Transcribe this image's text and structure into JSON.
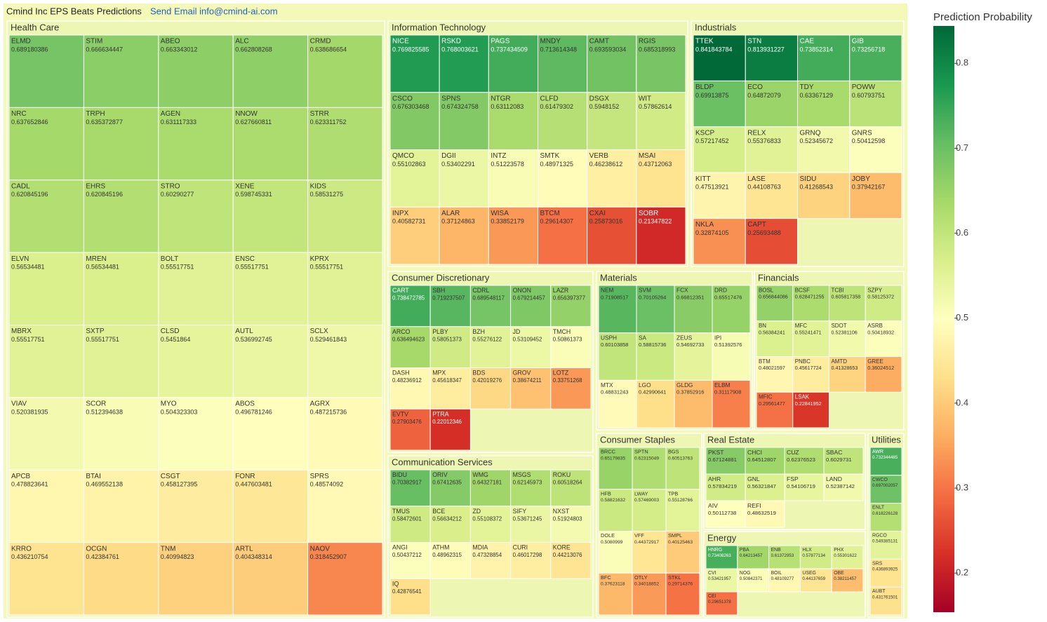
{
  "chart_data": {
    "type": "treemap",
    "title": "Cmind Inc EPS Beats Predictions",
    "link_text": "Send Email info@cmind-ai.com",
    "colorbar_title": "Prediction Probability",
    "clim": [
      0.154,
      0.844
    ],
    "cticks": [
      0.2,
      0.3,
      0.4,
      0.5,
      0.6,
      0.7,
      0.8
    ],
    "colorscale": [
      "#a50026",
      "#d73027",
      "#f46d43",
      "#fdae61",
      "#fee08b",
      "#ffffbf",
      "#d9ef8b",
      "#a6d96a",
      "#66bd63",
      "#1a9850",
      "#006837"
    ],
    "sectors": [
      {
        "name": "Health Care",
        "tiles": [
          {
            "label": "ELMD",
            "value": 0.689180386
          },
          {
            "label": "STIM",
            "value": 0.666634447
          },
          {
            "label": "ABEO",
            "value": 0.663343012
          },
          {
            "label": "ALC",
            "value": 0.662808268
          },
          {
            "label": "CRMD",
            "value": 0.638686654
          },
          {
            "label": "NRC",
            "value": 0.637652846
          },
          {
            "label": "TRPH",
            "value": 0.635372877
          },
          {
            "label": "AGEN",
            "value": 0.631117333
          },
          {
            "label": "NNOW",
            "value": 0.627660811
          },
          {
            "label": "STRR",
            "value": 0.623311752
          },
          {
            "label": "CADL",
            "value": 0.620845196
          },
          {
            "label": "EHRS",
            "value": 0.620845196
          },
          {
            "label": "STRO",
            "value": 0.60290277
          },
          {
            "label": "XENE",
            "value": 0.598745331
          },
          {
            "label": "KIDS",
            "value": 0.58531275
          },
          {
            "label": "ELVN",
            "value": 0.56534481
          },
          {
            "label": "MREN",
            "value": 0.56534481
          },
          {
            "label": "BOLT",
            "value": 0.55517751
          },
          {
            "label": "ENSC",
            "value": 0.55517751
          },
          {
            "label": "KPRX",
            "value": 0.55517751
          },
          {
            "label": "MBRX",
            "value": 0.55517751
          },
          {
            "label": "SXTP",
            "value": 0.55517751
          },
          {
            "label": "CLSD",
            "value": 0.5451864
          },
          {
            "label": "AUTL",
            "value": 0.536992745
          },
          {
            "label": "SCLX",
            "value": 0.529461843
          },
          {
            "label": "VIAV",
            "value": 0.520381935
          },
          {
            "label": "SCOR",
            "value": 0.512394638
          },
          {
            "label": "MYO",
            "value": 0.504323303
          },
          {
            "label": "ABOS",
            "value": 0.496781246
          },
          {
            "label": "AGRX",
            "value": 0.487215736
          },
          {
            "label": "APCB",
            "value": 0.478823641
          },
          {
            "label": "BTAI",
            "value": 0.469552138
          },
          {
            "label": "CSGT",
            "value": 0.458127395
          },
          {
            "label": "FONR",
            "value": 0.447603481
          },
          {
            "label": "SPRS",
            "value": 0.48574092
          },
          {
            "label": "KRRO",
            "value": 0.436210754
          },
          {
            "label": "OCGN",
            "value": 0.42384761
          },
          {
            "label": "TNM",
            "value": 0.40994823
          },
          {
            "label": "ARTL",
            "value": 0.404348314
          },
          {
            "label": "NAOV",
            "value": 0.318452907
          }
        ]
      },
      {
        "name": "Information Technology",
        "tiles": [
          {
            "label": "NICE",
            "value": 0.769825585
          },
          {
            "label": "RSKD",
            "value": 0.768003621
          },
          {
            "label": "PAGS",
            "value": 0.737434509
          },
          {
            "label": "MNDY",
            "value": 0.713614348
          },
          {
            "label": "CAMT",
            "value": 0.693593034
          },
          {
            "label": "RGIS",
            "value": 0.685318993
          },
          {
            "label": "CSCO",
            "value": 0.676303468
          },
          {
            "label": "SPNS",
            "value": 0.674324758
          },
          {
            "label": "NTGR",
            "value": 0.63112083
          },
          {
            "label": "CLFD",
            "value": 0.61479302
          },
          {
            "label": "DSGX",
            "value": 0.5948152
          },
          {
            "label": "WIT",
            "value": 0.57862614
          },
          {
            "label": "QMCO",
            "value": 0.55102863
          },
          {
            "label": "DGII",
            "value": 0.53402291
          },
          {
            "label": "INTZ",
            "value": 0.51223578
          },
          {
            "label": "SMTK",
            "value": 0.48971325
          },
          {
            "label": "VERB",
            "value": 0.46238612
          },
          {
            "label": "MSAI",
            "value": 0.43712063
          },
          {
            "label": "INPX",
            "value": 0.40582731
          },
          {
            "label": "ALAR",
            "value": 0.37124863
          },
          {
            "label": "WISA",
            "value": 0.33852179
          },
          {
            "label": "BTCM",
            "value": 0.29614307
          },
          {
            "label": "CXAI",
            "value": 0.25873016
          },
          {
            "label": "SOBR",
            "value": 0.21347822
          }
        ]
      },
      {
        "name": "Industrials",
        "tiles": [
          {
            "label": "TTEK",
            "value": 0.841843784
          },
          {
            "label": "STN",
            "value": 0.813931227
          },
          {
            "label": "CAE",
            "value": 0.73852314
          },
          {
            "label": "GIB",
            "value": 0.73256718
          },
          {
            "label": "BLDP",
            "value": 0.69913875
          },
          {
            "label": "ECO",
            "value": 0.64872079
          },
          {
            "label": "TDY",
            "value": 0.63367129
          },
          {
            "label": "POWW",
            "value": 0.60793751
          },
          {
            "label": "KSCP",
            "value": 0.57217452
          },
          {
            "label": "RELX",
            "value": 0.55376833
          },
          {
            "label": "GRNQ",
            "value": 0.52345672
          },
          {
            "label": "GNRS",
            "value": 0.50412598
          },
          {
            "label": "KITT",
            "value": 0.47513921
          },
          {
            "label": "LASE",
            "value": 0.44108763
          },
          {
            "label": "SIDU",
            "value": 0.41268543
          },
          {
            "label": "JOBY",
            "value": 0.37942167
          },
          {
            "label": "NKLA",
            "value": 0.32874105
          },
          {
            "label": "CAPT",
            "value": 0.25693488
          }
        ]
      },
      {
        "name": "Consumer Discretionary",
        "tiles": [
          {
            "label": "CART",
            "value": 0.738472785
          },
          {
            "label": "SBH",
            "value": 0.719237507
          },
          {
            "label": "CDRL",
            "value": 0.689548117
          },
          {
            "label": "ONON",
            "value": 0.679214457
          },
          {
            "label": "LAZR",
            "value": 0.656397377
          },
          {
            "label": "ARCO",
            "value": 0.636494623
          },
          {
            "label": "PLBY",
            "value": 0.58051373
          },
          {
            "label": "BZH",
            "value": 0.55276122
          },
          {
            "label": "JD",
            "value": 0.53109452
          },
          {
            "label": "TMCH",
            "value": 0.50861373
          },
          {
            "label": "DASH",
            "value": 0.48236912
          },
          {
            "label": "MPX",
            "value": 0.45618347
          },
          {
            "label": "BDS",
            "value": 0.42019276
          },
          {
            "label": "GROV",
            "value": 0.38674211
          },
          {
            "label": "LOTZ",
            "value": 0.33751268
          },
          {
            "label": "EVTV",
            "value": 0.27903476
          },
          {
            "label": "PTRA",
            "value": 0.22012346
          }
        ]
      },
      {
        "name": "Materials",
        "tiles": [
          {
            "label": "NEM",
            "value": 0.71908517
          },
          {
            "label": "SVM",
            "value": 0.70105264
          },
          {
            "label": "FCX",
            "value": 0.66812351
          },
          {
            "label": "DRD",
            "value": 0.65517476
          },
          {
            "label": "USPH",
            "value": 0.60103858
          },
          {
            "label": "SA",
            "value": 0.58815736
          },
          {
            "label": "ZEUS",
            "value": 0.54692733
          },
          {
            "label": "IPI",
            "value": 0.51392576
          },
          {
            "label": "MTX",
            "value": 0.48831243
          },
          {
            "label": "LGO",
            "value": 0.42990641
          },
          {
            "label": "GLDG",
            "value": 0.37852916
          },
          {
            "label": "ELBM",
            "value": 0.31117908
          }
        ]
      },
      {
        "name": "Financials",
        "tiles": [
          {
            "label": "BOSL",
            "value": 0.656844086
          },
          {
            "label": "BCSF",
            "value": 0.628471255
          },
          {
            "label": "TCBI",
            "value": 0.605817358
          },
          {
            "label": "SZPY",
            "value": 0.58125372
          },
          {
            "label": "BN",
            "value": 0.56384241
          },
          {
            "label": "MFC",
            "value": 0.55241471
          },
          {
            "label": "SDOT",
            "value": 0.52381106
          },
          {
            "label": "ASRB",
            "value": 0.50418932
          },
          {
            "label": "BTM",
            "value": 0.48021597
          },
          {
            "label": "PNBC",
            "value": 0.45617724
          },
          {
            "label": "AMTD",
            "value": 0.41328653
          },
          {
            "label": "GREE",
            "value": 0.36024512
          },
          {
            "label": "MFIC",
            "value": 0.29561477
          },
          {
            "label": "LSAK",
            "value": 0.22841952
          }
        ]
      },
      {
        "name": "Communication Services",
        "tiles": [
          {
            "label": "BIDU",
            "value": 0.70382917
          },
          {
            "label": "ORIV",
            "value": 0.67412635
          },
          {
            "label": "WMG",
            "value": 0.64327181
          },
          {
            "label": "MSGS",
            "value": 0.62145973
          },
          {
            "label": "ROKU",
            "value": 0.60518264
          },
          {
            "label": "TMUS",
            "value": 0.58472601
          },
          {
            "label": "BCE",
            "value": 0.56634212
          },
          {
            "label": "ZD",
            "value": 0.55108372
          },
          {
            "label": "SIFY",
            "value": 0.53671245
          },
          {
            "label": "NXST",
            "value": 0.51924803
          },
          {
            "label": "ANGI",
            "value": 0.50437212
          },
          {
            "label": "ATHM",
            "value": 0.48962315
          },
          {
            "label": "MDIA",
            "value": 0.47328854
          },
          {
            "label": "CURI",
            "value": 0.46017298
          },
          {
            "label": "KORE",
            "value": 0.44213076
          },
          {
            "label": "IQ",
            "value": 0.42876541
          }
        ]
      },
      {
        "name": "Consumer Staples",
        "tiles": [
          {
            "label": "BRCC",
            "value": 0.65179835
          },
          {
            "label": "SPTN",
            "value": 0.62315049
          },
          {
            "label": "BGS",
            "value": 0.60513763
          },
          {
            "label": "HFB",
            "value": 0.58821632
          },
          {
            "label": "LWAY",
            "value": 0.57469003
          },
          {
            "label": "TPB",
            "value": 0.55128766
          },
          {
            "label": "DOLE",
            "value": 0.5080999
          },
          {
            "label": "VFF",
            "value": 0.44372917
          },
          {
            "label": "SMPL",
            "value": 0.40125463
          },
          {
            "label": "BFC",
            "value": 0.37623118
          },
          {
            "label": "OTLY",
            "value": 0.34018852
          },
          {
            "label": "STKL",
            "value": 0.29714376
          }
        ]
      },
      {
        "name": "Real Estate",
        "tiles": [
          {
            "label": "PKST",
            "value": 0.67124881
          },
          {
            "label": "CHCI",
            "value": 0.64512807
          },
          {
            "label": "CUZ",
            "value": 0.62376523
          },
          {
            "label": "SBAC",
            "value": 0.6029731
          },
          {
            "label": "AHR",
            "value": 0.57834219
          },
          {
            "label": "GNL",
            "value": 0.56321847
          },
          {
            "label": "FSP",
            "value": 0.54106719
          },
          {
            "label": "LAND",
            "value": 0.52387142
          },
          {
            "label": "AIV",
            "value": 0.50112738
          },
          {
            "label": "REFI",
            "value": 0.48632519
          }
        ]
      },
      {
        "name": "Energy",
        "tiles": [
          {
            "label": "HNRG",
            "value": 0.73408263
          },
          {
            "label": "PBA",
            "value": 0.64213457
          },
          {
            "label": "ENB",
            "value": 0.61372953
          },
          {
            "label": "HLX",
            "value": 0.57877134
          },
          {
            "label": "PHX",
            "value": 0.55301622
          },
          {
            "label": "CVI",
            "value": 0.53421957
          },
          {
            "label": "NOG",
            "value": 0.50842371
          },
          {
            "label": "BOIL",
            "value": 0.48109277
          },
          {
            "label": "USEG",
            "value": 0.44137659
          },
          {
            "label": "OBE",
            "value": 0.38211457
          },
          {
            "label": "CEI",
            "value": 0.29651378
          }
        ]
      },
      {
        "name": "Utilities",
        "tiles": [
          {
            "label": "AWR",
            "value": 0.732344485
          },
          {
            "label": "CWCO",
            "value": 0.697002057
          },
          {
            "label": "ENLT",
            "value": 0.618226128
          },
          {
            "label": "RGCO",
            "value": 0.549385131
          },
          {
            "label": "SRS",
            "value": 0.436893925
          },
          {
            "label": "AUBT",
            "value": 0.431761501
          }
        ]
      }
    ]
  }
}
